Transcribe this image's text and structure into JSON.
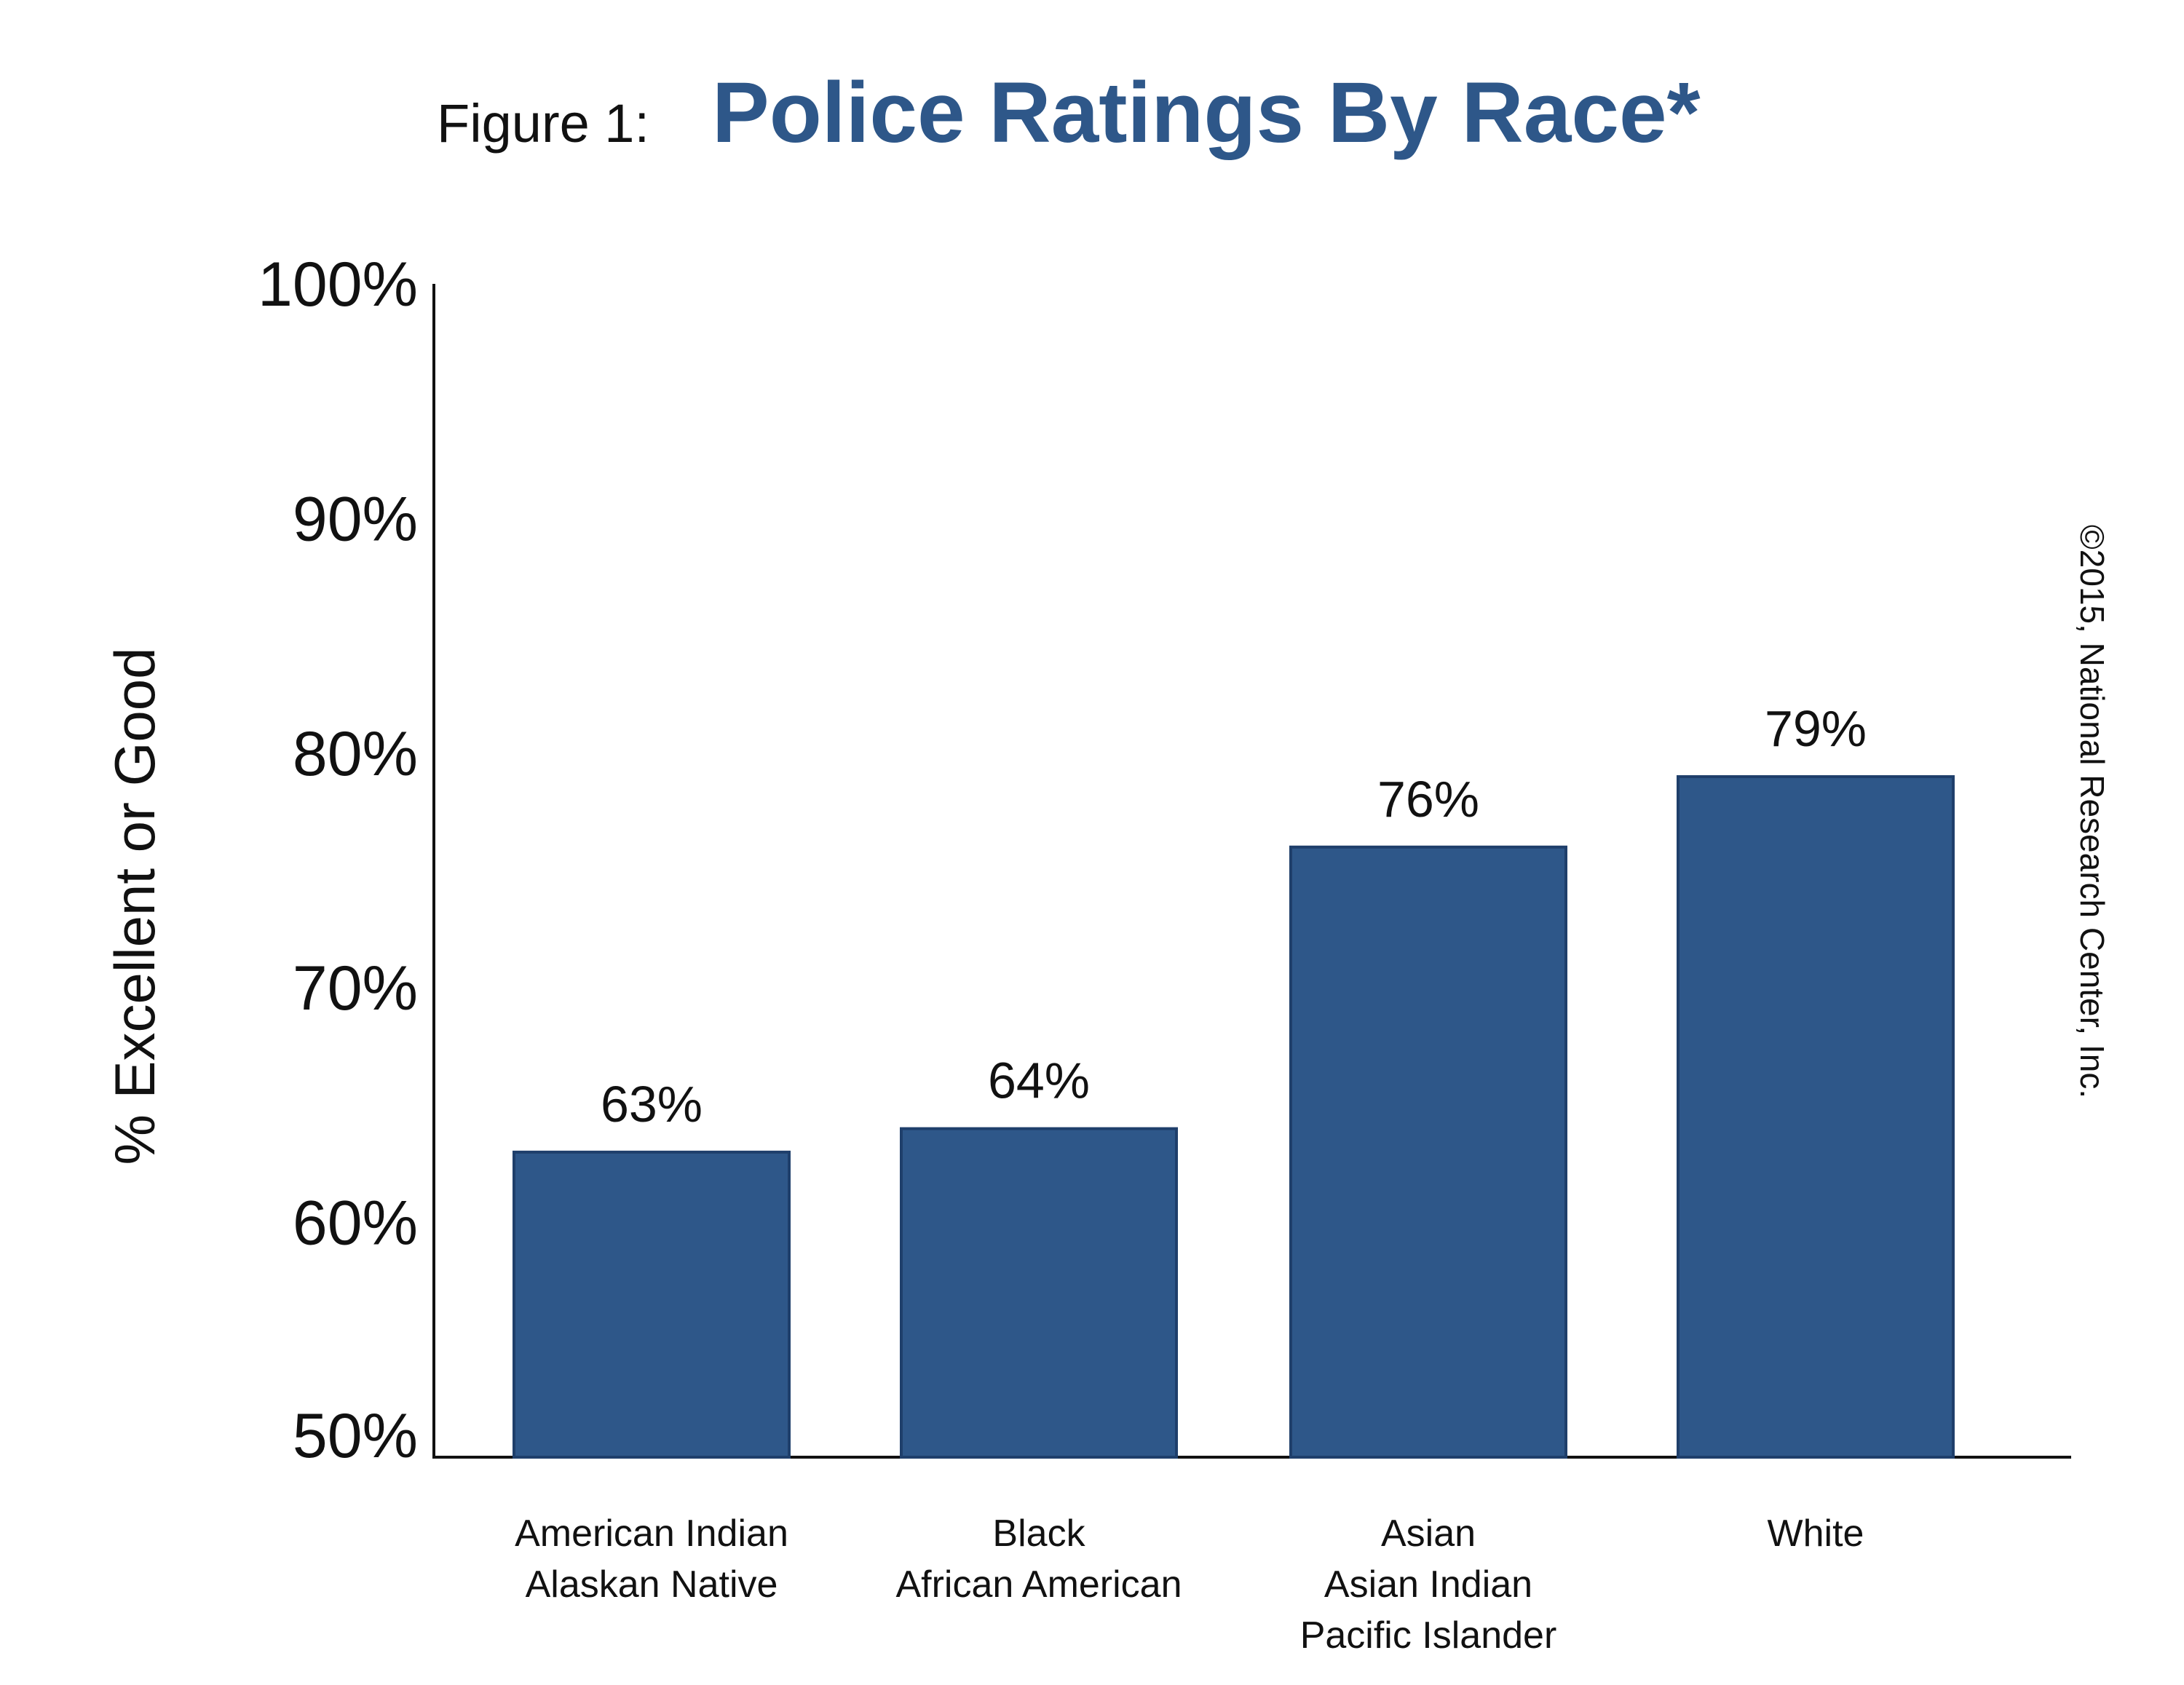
{
  "chart_data": {
    "type": "bar",
    "title_prefix": "Figure 1:",
    "title": "Police Ratings By Race*",
    "ylabel": "% Excellent or Good",
    "xlabel": "",
    "categories": [
      [
        "American Indian",
        "Alaskan Native"
      ],
      [
        "Black",
        "African American"
      ],
      [
        "Asian",
        "Asian Indian",
        "Pacific Islander"
      ],
      [
        "White"
      ]
    ],
    "values": [
      63,
      64,
      76,
      79
    ],
    "data_labels": [
      "63%",
      "64%",
      "76%",
      "79%"
    ],
    "ylim": [
      50,
      100
    ],
    "yticks": [
      50,
      60,
      70,
      80,
      90,
      100
    ],
    "ytick_labels": [
      "50%",
      "60%",
      "70%",
      "80%",
      "90%",
      "100%"
    ],
    "grid": false,
    "legend": "none",
    "bar_color": "#2e5789",
    "bar_edge_color": "#1f3f6b",
    "title_color": "#2e5789",
    "copyright": "©2015, National Research Center, Inc."
  }
}
